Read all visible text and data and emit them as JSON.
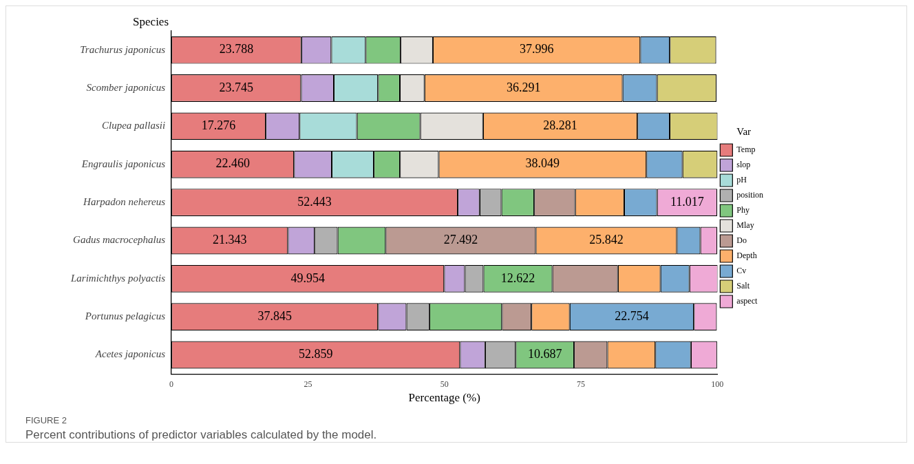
{
  "chart_data": {
    "type": "bar",
    "orientation": "horizontal",
    "stacked": true,
    "xlabel": "Percentage (%)",
    "ylabel": "Species",
    "legend_title": "Var",
    "legend": "right",
    "grid": false,
    "categories": [
      "Trachurus japonicus",
      "Scomber japonicus",
      "Clupea pallasii",
      "Engraulis japonicus",
      "Harpadon nehereus",
      "Gadus macrocephalus",
      "Larimichthys polyactis",
      "Portunus pelagicus",
      "Acetes japonicus"
    ],
    "xlim": [
      0,
      100
    ],
    "xticks": [
      0,
      25,
      50,
      75,
      100
    ],
    "series": [
      {
        "name": "Temp",
        "color": "#e67c7c",
        "values": [
          23.788,
          23.745,
          17.276,
          22.46,
          52.443,
          21.343,
          49.954,
          37.845,
          52.859
        ],
        "value_labels": [
          "23.788",
          "23.745",
          "17.276",
          "22.460",
          "52.443",
          "21.343",
          "49.954",
          "37.845",
          "52.859"
        ]
      },
      {
        "name": "slop",
        "color": "#c0a4d8",
        "values": [
          5.5,
          6.0,
          6.2,
          6.9,
          4.0,
          4.9,
          3.8,
          5.2,
          4.6
        ]
      },
      {
        "name": "pH",
        "color": "#a8dcd9",
        "values": [
          6.3,
          8.1,
          10.5,
          7.7,
          null,
          null,
          null,
          null,
          null
        ]
      },
      {
        "name": "position",
        "color": "#b0b0b0",
        "values": [
          null,
          null,
          null,
          null,
          4.0,
          4.2,
          3.4,
          4.2,
          5.6
        ]
      },
      {
        "name": "Phy",
        "color": "#80c67f",
        "values": [
          6.4,
          4.0,
          11.6,
          4.8,
          6.0,
          8.8,
          12.622,
          13.3,
          10.687
        ],
        "value_labels": [
          null,
          null,
          null,
          null,
          null,
          null,
          "12.622",
          null,
          "10.687"
        ]
      },
      {
        "name": "Mlay",
        "color": "#e4e1dc",
        "values": [
          5.9,
          4.5,
          11.5,
          7.1,
          null,
          null,
          null,
          null,
          null
        ]
      },
      {
        "name": "Do",
        "color": "#bb9a92",
        "values": [
          null,
          null,
          null,
          null,
          7.5,
          27.492,
          12.0,
          5.4,
          6.1
        ],
        "value_labels": [
          null,
          null,
          null,
          null,
          null,
          "27.492",
          null,
          null,
          null
        ]
      },
      {
        "name": "Depth",
        "color": "#fdb06c",
        "values": [
          37.996,
          36.291,
          28.281,
          38.049,
          9.0,
          25.842,
          7.8,
          7.0,
          8.8
        ],
        "value_labels": [
          "37.996",
          "36.291",
          "28.281",
          "38.049",
          null,
          "25.842",
          null,
          null,
          null
        ]
      },
      {
        "name": "Cv",
        "color": "#78aad2",
        "values": [
          5.4,
          6.3,
          5.9,
          6.6,
          6.0,
          4.3,
          5.3,
          22.754,
          6.5
        ],
        "value_labels": [
          null,
          null,
          null,
          null,
          null,
          null,
          null,
          "22.754",
          null
        ]
      },
      {
        "name": "Salt",
        "color": "#d6ce78",
        "values": [
          8.5,
          10.9,
          8.8,
          6.4,
          null,
          null,
          null,
          null,
          null
        ]
      },
      {
        "name": "aspect",
        "color": "#efaad6",
        "values": [
          null,
          null,
          null,
          null,
          11.017,
          3.1,
          5.2,
          4.2,
          4.8
        ],
        "value_labels": [
          null,
          null,
          null,
          null,
          "11.017",
          null,
          null,
          null,
          null
        ]
      }
    ],
    "annotations": [
      "FIGURE 2",
      "Percent contributions of predictor variables calculated by the model."
    ]
  }
}
